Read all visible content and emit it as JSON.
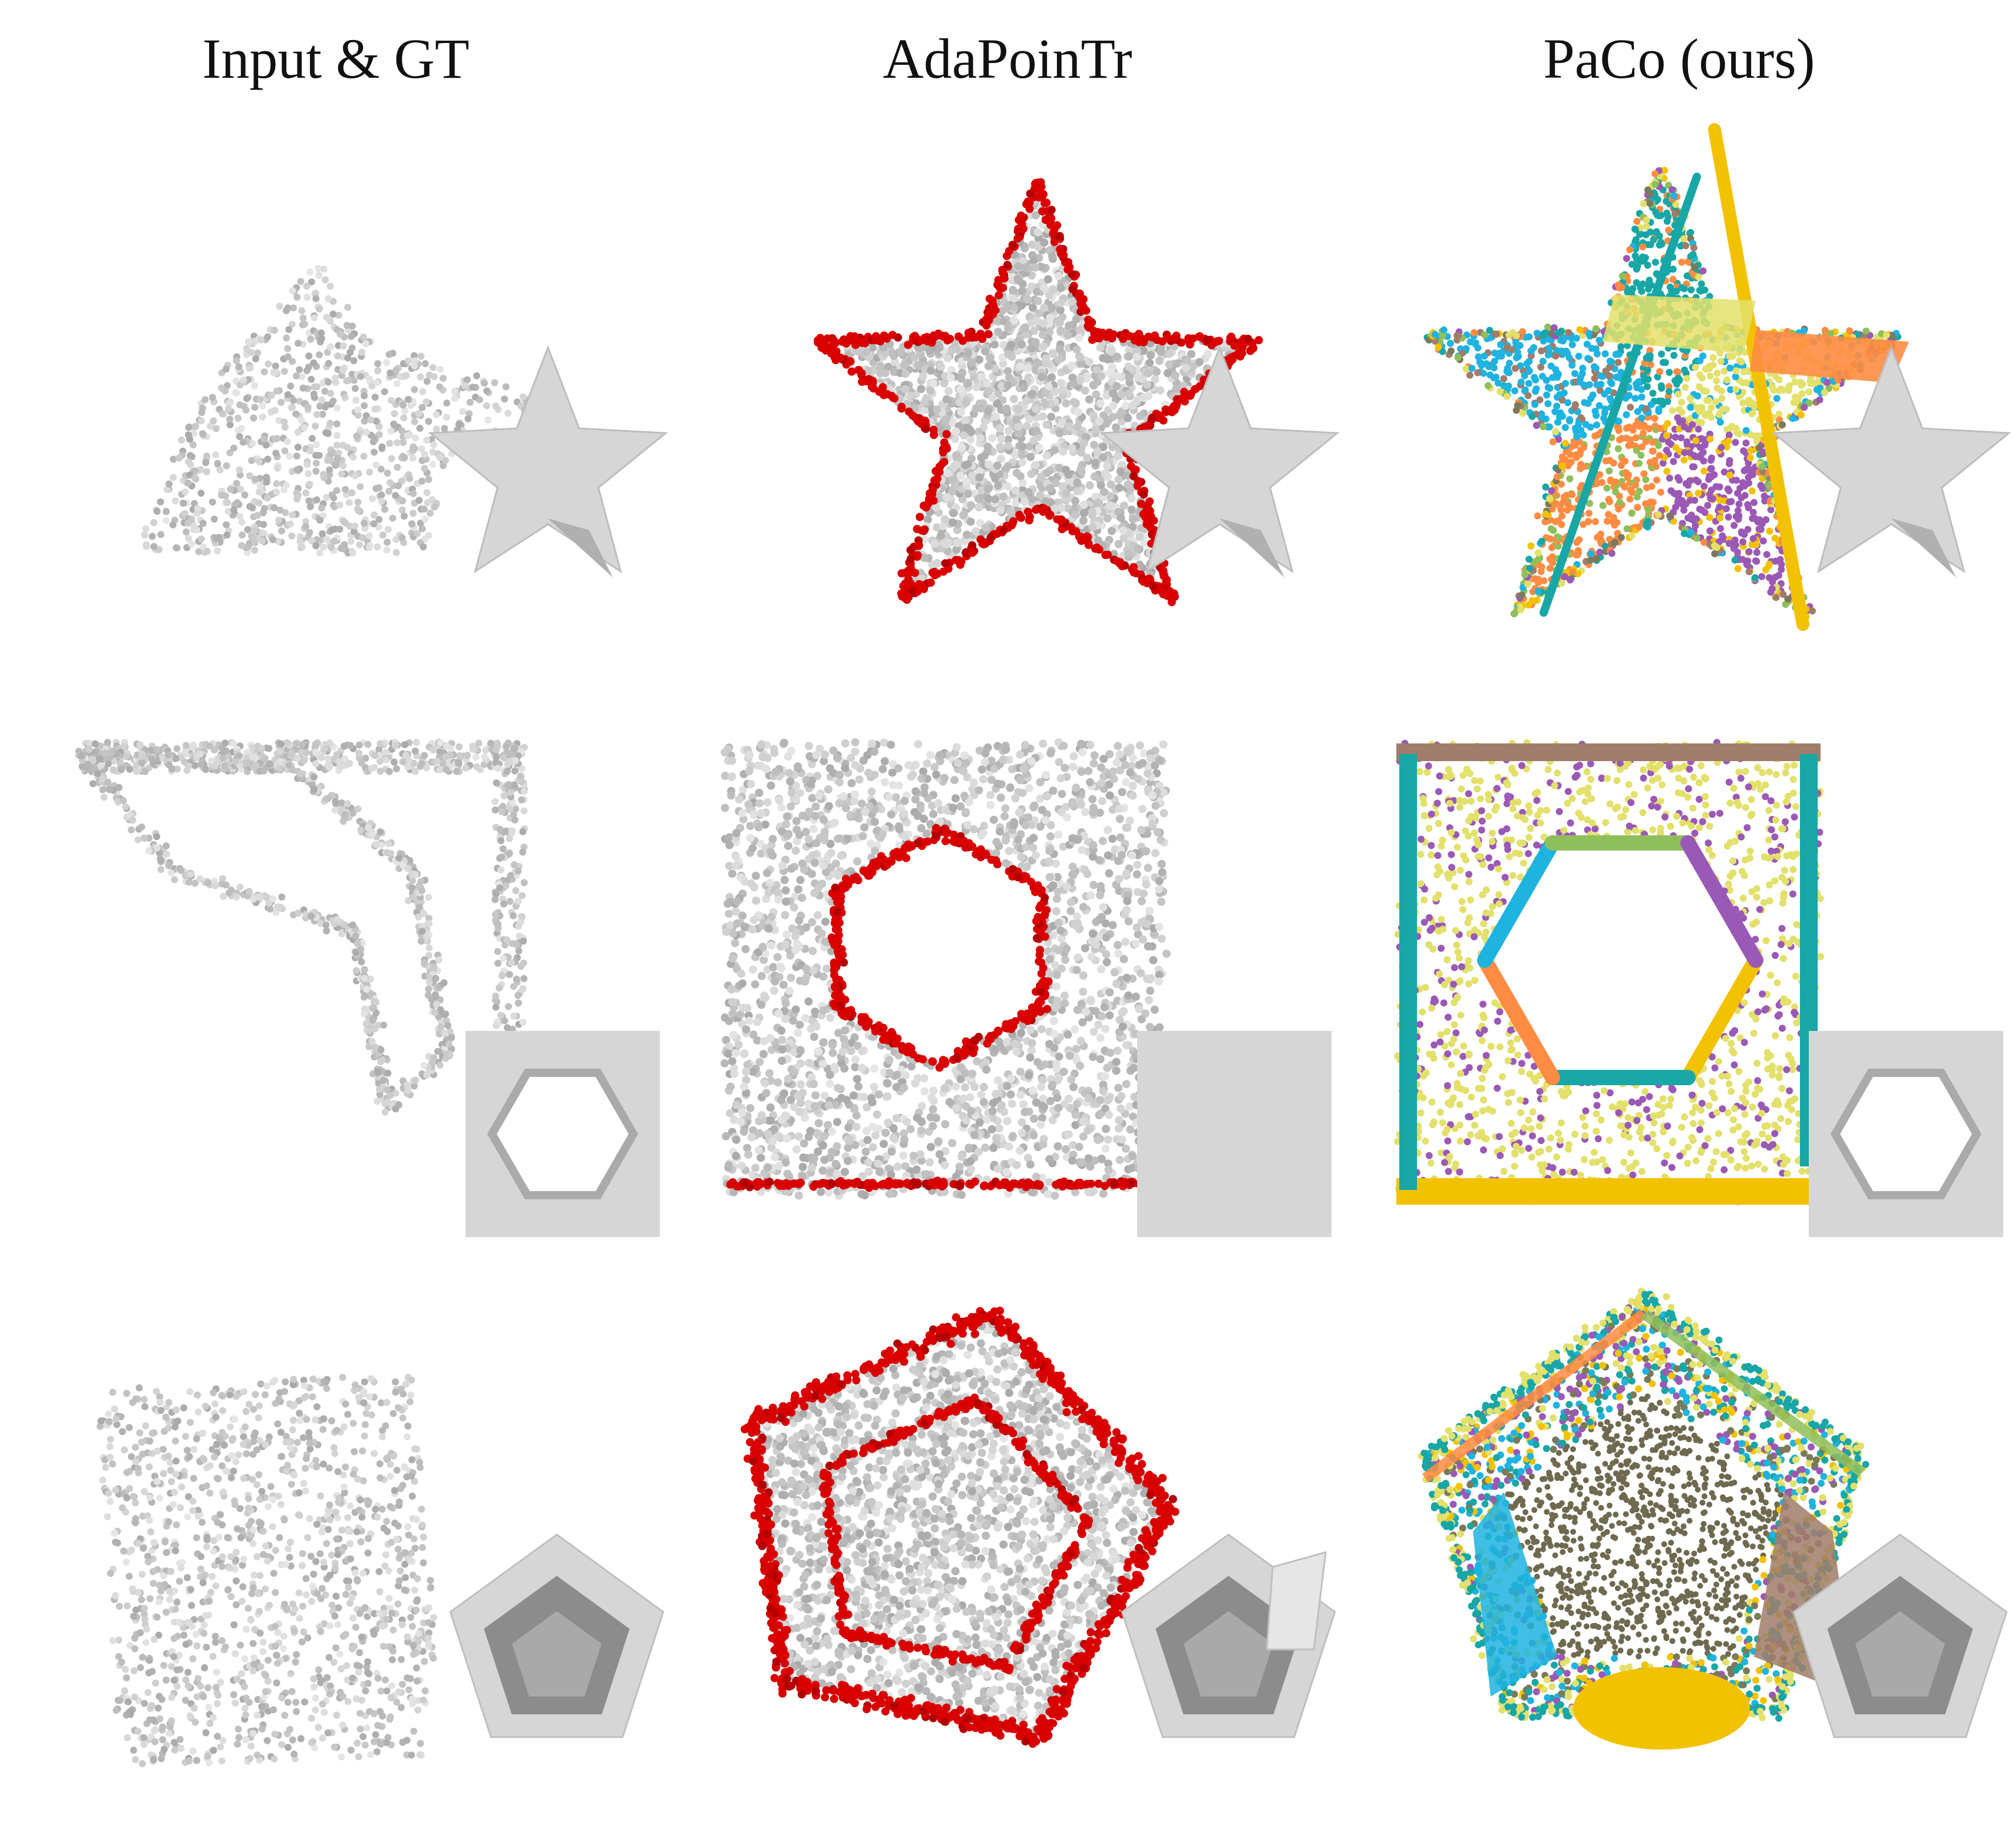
{
  "headers": [
    "Input & GT",
    "AdaPoinTr",
    "PaCo (ours)"
  ],
  "rows": [
    {
      "shape": "star"
    },
    {
      "shape": "hex-frame"
    },
    {
      "shape": "pentagon-cup"
    }
  ],
  "methods": [
    {
      "id": "input",
      "style": "gray-points"
    },
    {
      "id": "adapointr",
      "style": "gray-red-points"
    },
    {
      "id": "paco",
      "style": "colored-planes"
    }
  ],
  "colors": {
    "points_gray": "#c4c4c4",
    "points_dark": "#9a9a9a",
    "red": "#d90000",
    "gt_face": "#d6d6d6",
    "gt_dark": "#b0b0b0",
    "paco_palette": [
      "#18a6a6",
      "#e3e06b",
      "#9b59b6",
      "#ff8c42",
      "#1fb3e0",
      "#f2c200",
      "#8fbf5a",
      "#a07d6a",
      "#7a7a5a"
    ]
  }
}
